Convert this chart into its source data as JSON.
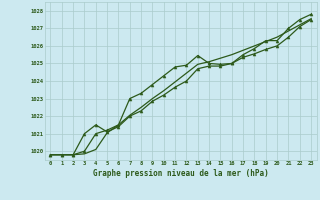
{
  "x": [
    0,
    1,
    2,
    3,
    4,
    5,
    6,
    7,
    8,
    9,
    10,
    11,
    12,
    13,
    14,
    15,
    16,
    17,
    18,
    19,
    20,
    21,
    22,
    23
  ],
  "line_upper": [
    1019.8,
    1019.8,
    1019.8,
    1020.0,
    1021.0,
    1021.2,
    1021.5,
    1023.0,
    1023.3,
    1023.8,
    1024.3,
    1024.8,
    1024.9,
    1025.45,
    1025.0,
    1024.95,
    1025.0,
    1025.5,
    1025.85,
    1026.3,
    1026.3,
    1027.0,
    1027.5,
    1027.8
  ],
  "line_lower": [
    1019.8,
    1019.8,
    1019.8,
    1021.0,
    1021.5,
    1021.1,
    1021.4,
    1022.0,
    1022.3,
    1022.85,
    1023.2,
    1023.65,
    1024.0,
    1024.7,
    1024.85,
    1024.85,
    1025.0,
    1025.35,
    1025.55,
    1025.8,
    1026.0,
    1026.5,
    1027.1,
    1027.5
  ],
  "line_mid": [
    1019.8,
    1019.8,
    1019.8,
    1019.85,
    1020.1,
    1021.05,
    1021.5,
    1022.05,
    1022.5,
    1023.0,
    1023.45,
    1023.95,
    1024.45,
    1024.95,
    1025.1,
    1025.3,
    1025.5,
    1025.75,
    1026.0,
    1026.25,
    1026.5,
    1026.85,
    1027.2,
    1027.55
  ],
  "bg_color": "#cce9f0",
  "grid_color": "#aacccc",
  "line_color": "#2d5a1b",
  "ylabel_values": [
    1020,
    1021,
    1022,
    1023,
    1024,
    1025,
    1026,
    1027,
    1028
  ],
  "xlabel": "Graphe pression niveau de la mer (hPa)",
  "ylim": [
    1019.5,
    1028.5
  ],
  "xlim": [
    -0.5,
    23.5
  ]
}
